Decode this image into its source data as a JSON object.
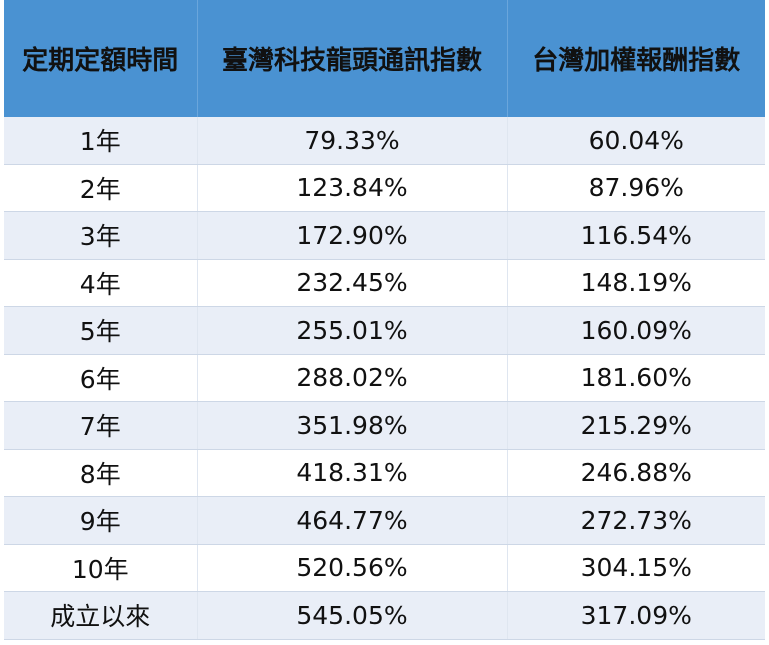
{
  "table": {
    "header": [
      "定期定額時間",
      "臺灣科技龍頭通訊指數",
      "台灣加權報酬指數"
    ],
    "rows": [
      [
        "1年",
        "79.33%",
        "60.04%"
      ],
      [
        "2年",
        "123.84%",
        "87.96%"
      ],
      [
        "3年",
        "172.90%",
        "116.54%"
      ],
      [
        "4年",
        "232.45%",
        "148.19%"
      ],
      [
        "5年",
        "255.01%",
        "160.09%"
      ],
      [
        "6年",
        "288.02%",
        "181.60%"
      ],
      [
        "7年",
        "351.98%",
        "215.29%"
      ],
      [
        "8年",
        "418.31%",
        "246.88%"
      ],
      [
        "9年",
        "464.77%",
        "272.73%"
      ],
      [
        "10年",
        "520.56%",
        "304.15%"
      ],
      [
        "成立以來",
        "545.05%",
        "317.09%"
      ]
    ]
  }
}
